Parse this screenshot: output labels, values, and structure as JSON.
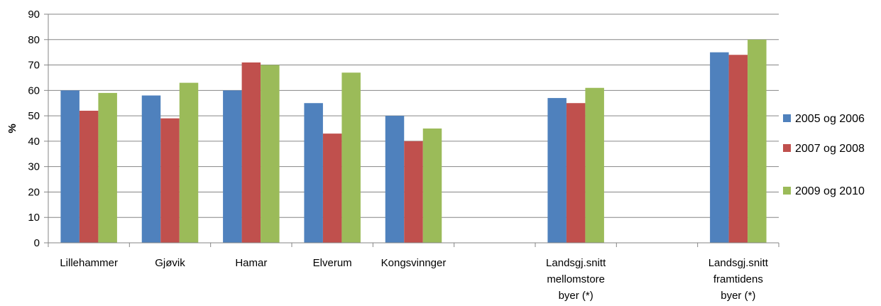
{
  "chart_data": {
    "type": "bar",
    "title": "",
    "xlabel": "",
    "ylabel": "%",
    "ylim": [
      0,
      90
    ],
    "yticks": [
      0,
      10,
      20,
      30,
      40,
      50,
      60,
      70,
      80,
      90
    ],
    "grid": true,
    "legend_position": "right",
    "categories": [
      [
        "Lillehammer"
      ],
      [
        "Gjøvik"
      ],
      [
        "Hamar"
      ],
      [
        "Elverum"
      ],
      [
        "Kongsvinnger"
      ],
      [],
      [
        "Landsgj.snitt",
        "mellomstore",
        "byer  (*)"
      ],
      [],
      [
        "Landsgj.snitt",
        "framtidens",
        "byer  (*)"
      ]
    ],
    "series": [
      {
        "name": "2005 og 2006",
        "color": "#4F81BD",
        "values": [
          60,
          58,
          60,
          55,
          50,
          null,
          57,
          null,
          75
        ]
      },
      {
        "name": "2007 og 2008",
        "color": "#C0504D",
        "values": [
          52,
          49,
          71,
          43,
          40,
          null,
          55,
          null,
          74
        ]
      },
      {
        "name": "2009 og 2010",
        "color": "#9BBB59",
        "values": [
          59,
          63,
          70,
          67,
          45,
          null,
          61,
          null,
          80
        ]
      }
    ]
  }
}
